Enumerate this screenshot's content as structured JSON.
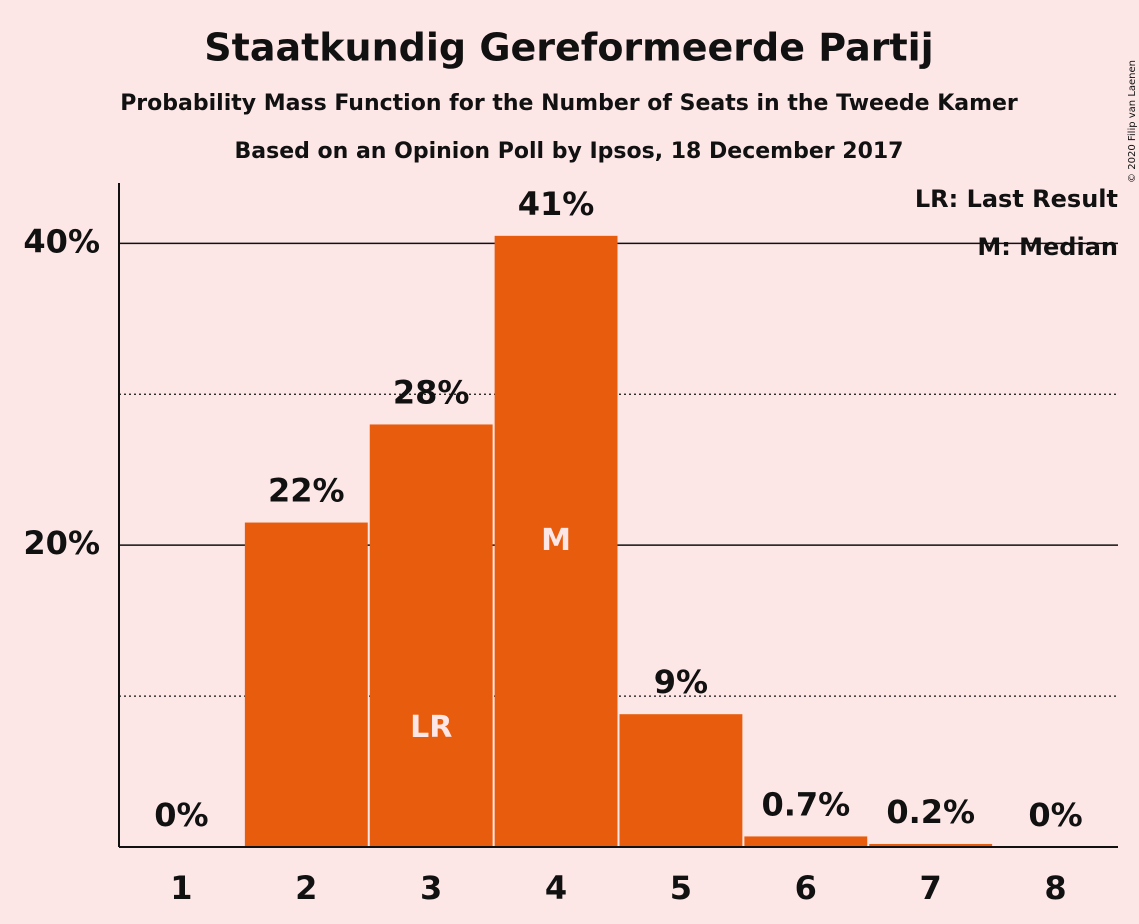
{
  "chart_data": {
    "type": "bar",
    "title": "Staatkundig Gereformeerde Partij",
    "subtitle": "Probability Mass Function for the Number of Seats in the Tweede Kamer",
    "subtitle2": "Based on an Opinion Poll by Ipsos, 18 December 2017",
    "copyright": "© 2020 Filip van Laenen",
    "categories": [
      "1",
      "2",
      "3",
      "4",
      "5",
      "6",
      "7",
      "8"
    ],
    "values": [
      0,
      21.5,
      28,
      40.5,
      8.8,
      0.7,
      0.2,
      0
    ],
    "value_labels": [
      "0%",
      "22%",
      "28%",
      "41%",
      "9%",
      "0.7%",
      "0.2%",
      "0%"
    ],
    "bar_markers": [
      null,
      null,
      "LR",
      "M",
      null,
      null,
      null,
      null
    ],
    "legend": [
      "LR: Last Result",
      "M: Median"
    ],
    "color": "#e85d0d",
    "ylim": [
      0,
      44
    ],
    "yticks": [
      {
        "value": 20,
        "label": "20%"
      },
      {
        "value": 40,
        "label": "40%"
      }
    ],
    "minor_yticks": [
      10,
      30
    ],
    "grid": true
  }
}
